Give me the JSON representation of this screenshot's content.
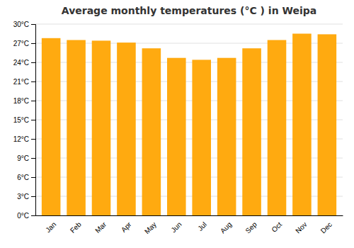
{
  "chart_data": {
    "type": "bar",
    "title": "Average monthly temperatures (°C ) in Weipa",
    "categories": [
      "Jan",
      "Feb",
      "Mar",
      "Apr",
      "May",
      "Jun",
      "Jul",
      "Aug",
      "Sep",
      "Oct",
      "Nov",
      "Dec"
    ],
    "values": [
      27.8,
      27.5,
      27.4,
      27.1,
      26.2,
      24.7,
      24.4,
      24.7,
      26.2,
      27.5,
      28.5,
      28.4
    ],
    "color": "#FFAA10",
    "ylim": [
      0,
      30
    ],
    "yticks": [
      {
        "value": 0,
        "label": "0°C"
      },
      {
        "value": 3,
        "label": "3°C"
      },
      {
        "value": 6,
        "label": "6°C"
      },
      {
        "value": 9,
        "label": "9°C"
      },
      {
        "value": 12,
        "label": "12°C"
      },
      {
        "value": 15,
        "label": "15°C"
      },
      {
        "value": 18,
        "label": "18°C"
      },
      {
        "value": 21,
        "label": "21°C"
      },
      {
        "value": 24,
        "label": "24°C"
      },
      {
        "value": 27,
        "label": "27°C"
      },
      {
        "value": 30,
        "label": "30°C"
      }
    ],
    "grid": true
  }
}
